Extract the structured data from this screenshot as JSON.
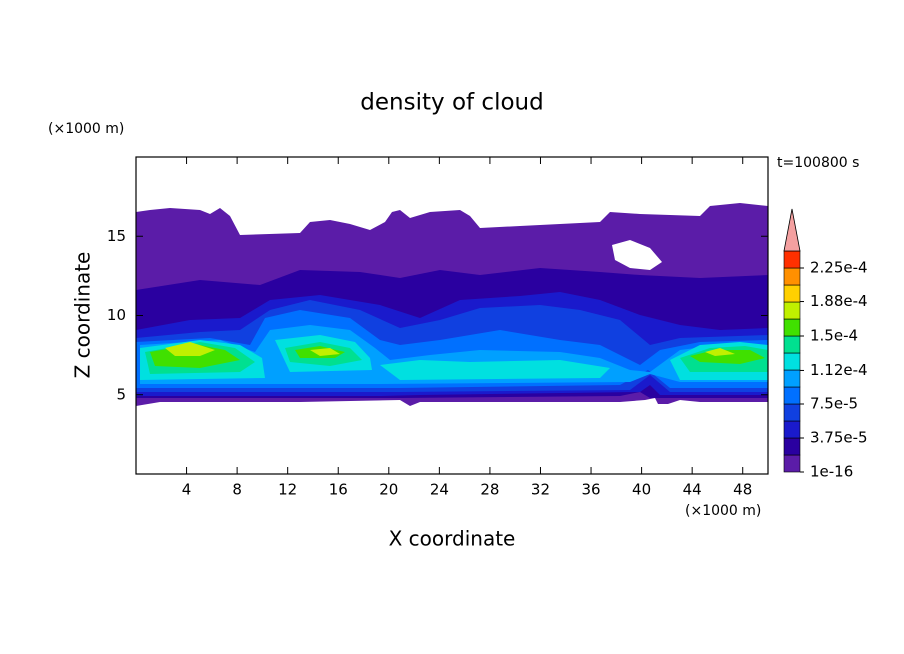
{
  "chart_data": {
    "type": "contour",
    "title": "density of cloud",
    "x_label": "X coordinate",
    "y_label": "Z coordinate",
    "x_unit": "(×1000 m)",
    "y_unit": "(×1000 m)",
    "time_label": "t=100800 s",
    "xlim": [
      0,
      50
    ],
    "xticks": [
      4,
      8,
      12,
      16,
      20,
      24,
      28,
      32,
      36,
      40,
      44,
      48
    ],
    "ylim": [
      0,
      20
    ],
    "yticks": [
      5,
      10,
      15
    ],
    "colorbar": {
      "lim": [
        1e-16,
        0.00024375
      ],
      "ticks": [
        {
          "value": 1e-16,
          "label": "1e-16"
        },
        {
          "value": 3.75e-05,
          "label": "3.75e-5"
        },
        {
          "value": 7.5e-05,
          "label": "7.5e-5"
        },
        {
          "value": 0.000112,
          "label": "1.12e-4"
        },
        {
          "value": 0.00015,
          "label": "1.5e-4"
        },
        {
          "value": 0.000188,
          "label": "1.88e-4"
        },
        {
          "value": 0.000225,
          "label": "2.25e-4"
        }
      ],
      "colors": [
        "#5b1ca8",
        "#2a00a0",
        "#1a1acc",
        "#1040e0",
        "#0070ff",
        "#00a0ff",
        "#00e0e0",
        "#00e090",
        "#40e000",
        "#c0f000",
        "#ffd000",
        "#ff9000",
        "#ff3000"
      ],
      "extend_color": "#f4a0a0"
    }
  }
}
